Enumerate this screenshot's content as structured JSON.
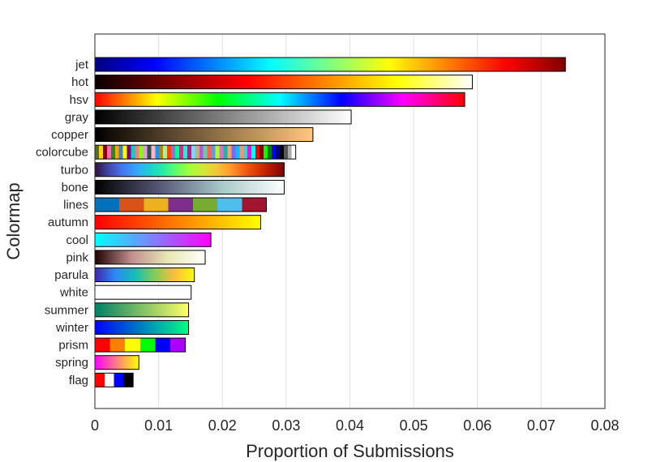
{
  "chart_data": {
    "type": "bar",
    "orientation": "horizontal",
    "xlabel": "Proportion of Submissions",
    "ylabel": "Colormap",
    "xlim": [
      0,
      0.08
    ],
    "xticks": [
      "0",
      "0.01",
      "0.02",
      "0.03",
      "0.04",
      "0.05",
      "0.06",
      "0.07",
      "0.08"
    ],
    "grid": "vertical",
    "categories": [
      "jet",
      "hot",
      "hsv",
      "gray",
      "copper",
      "colorcube",
      "turbo",
      "bone",
      "lines",
      "autumn",
      "cool",
      "pink",
      "parula",
      "white",
      "summer",
      "winter",
      "prism",
      "spring",
      "flag"
    ],
    "values": [
      0.0738,
      0.0592,
      0.058,
      0.0402,
      0.0342,
      0.0315,
      0.0297,
      0.0297,
      0.0269,
      0.026,
      0.0182,
      0.0173,
      0.0156,
      0.0151,
      0.0147,
      0.0147,
      0.0142,
      0.0069,
      0.006
    ],
    "colormaps": {
      "jet": [
        "#00007f",
        "#0000ff",
        "#007fff",
        "#00ffff",
        "#7fff7f",
        "#ffff00",
        "#ff7f00",
        "#ff0000",
        "#7f0000"
      ],
      "hot": [
        "#0a0000",
        "#800000",
        "#ff0000",
        "#ff8000",
        "#ffff00",
        "#ffffff"
      ],
      "hsv": [
        "#ff0000",
        "#ffff00",
        "#00ff00",
        "#00ffff",
        "#0000ff",
        "#ff00ff",
        "#ff0000"
      ],
      "gray": [
        "#000000",
        "#ffffff"
      ],
      "copper": [
        "#000000",
        "#ffc77f"
      ],
      "colorcube": [
        "#556b2f",
        "#ffd700",
        "#8b0000",
        "#ff69b4",
        "#228b22",
        "#ffa500",
        "#4682b4",
        "#ffff00",
        "#800080",
        "#00ced1",
        "#f08080",
        "#7fff00",
        "#dda0dd",
        "#2f4f4f",
        "#ffb6c1",
        "#1e90ff",
        "#b8860b",
        "#98fb98",
        "#ff4500",
        "#9370db",
        "#00fa9a",
        "#ff1493",
        "#40e0d0",
        "#c71585",
        "#87cefa",
        "#bdb76b",
        "#ba55d3",
        "#66cdaa",
        "#ff6347",
        "#6495ed",
        "#adff2f",
        "#da70d6",
        "#20b2aa",
        "#f4a460",
        "#7b68ee",
        "#00bfff",
        "#e9967a",
        "#48d1cc",
        "#ff00ff",
        "#00ffff",
        "#ff0000",
        "#7f0000",
        "#00ff00",
        "#007f00",
        "#0000ff",
        "#00007f",
        "#000000",
        "#555555",
        "#aaaaaa",
        "#ffffff"
      ],
      "turbo": [
        "#30123b",
        "#4145ab",
        "#4675ed",
        "#39a2fc",
        "#1bcfd4",
        "#24eca6",
        "#61fc6c",
        "#a4fc3b",
        "#d1e834",
        "#f3c63a",
        "#fe9b2d",
        "#f36315",
        "#d93806",
        "#b11901",
        "#7a0402"
      ],
      "bone": [
        "#000000",
        "#545474",
        "#a7c7c7",
        "#ffffff"
      ],
      "lines": [
        "#0072bd",
        "#d95319",
        "#edb120",
        "#7e2f8e",
        "#77ac30",
        "#4dbeee",
        "#a2142f"
      ],
      "autumn": [
        "#ff0000",
        "#ffff00"
      ],
      "cool": [
        "#00ffff",
        "#ff00ff"
      ],
      "pink": [
        "#1e0000",
        "#c28f8f",
        "#e8e8b4",
        "#ffffff"
      ],
      "parula": [
        "#3e26a8",
        "#2e87f7",
        "#13beb8",
        "#81cc59",
        "#fdbd3c",
        "#f9fb0e"
      ],
      "white": [
        "#ffffff",
        "#ffffff"
      ],
      "summer": [
        "#008066",
        "#ffff66"
      ],
      "winter": [
        "#0000ff",
        "#00ff80"
      ],
      "prism": [
        "#ff0000",
        "#ff8000",
        "#ffff00",
        "#00ff00",
        "#0000ff",
        "#aa00ff"
      ],
      "spring": [
        "#ff00ff",
        "#ffff00"
      ],
      "flag": [
        "#ff0000",
        "#ffffff",
        "#0000ff",
        "#000000"
      ]
    }
  }
}
